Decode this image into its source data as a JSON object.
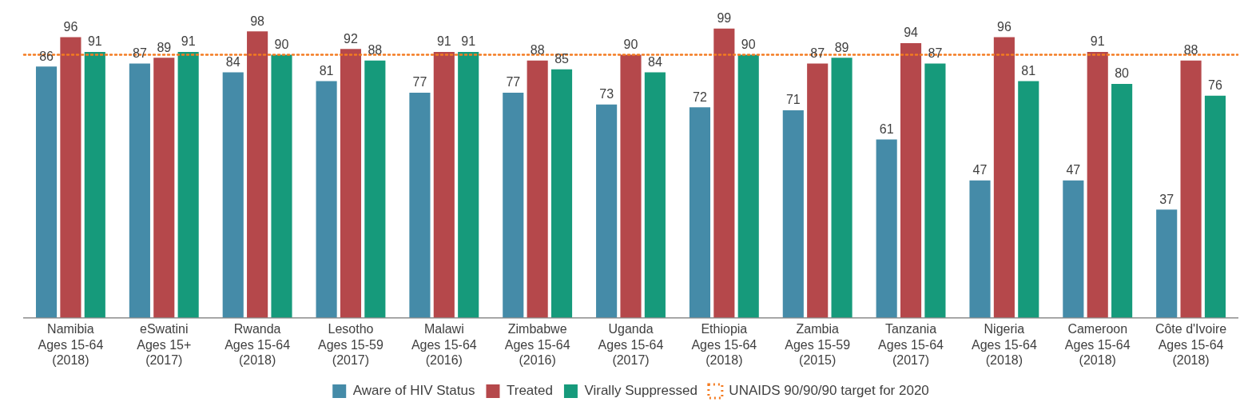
{
  "chart_data": {
    "type": "bar",
    "categories": [
      "Namibia\nAges 15-64\n(2018)",
      "eSwatini\nAges 15+\n(2017)",
      "Rwanda\nAges 15-64\n(2018)",
      "Lesotho\nAges 15-59\n(2017)",
      "Malawi\nAges 15-64\n(2016)",
      "Zimbabwe\nAges 15-64\n(2016)",
      "Uganda\nAges 15-64\n(2017)",
      "Ethiopia\nAges 15-64\n(2018)",
      "Zambia\nAges 15-59\n(2015)",
      "Tanzania\nAges 15-64\n(2017)",
      "Nigeria\nAges 15-64\n(2018)",
      "Cameroon\nAges 15-64\n(2018)",
      "Côte d'Ivoire\nAges 15-64\n(2018)"
    ],
    "series": [
      {
        "name": "Aware of HIV Status",
        "color": "#458ba8",
        "values": [
          86,
          87,
          84,
          81,
          77,
          77,
          73,
          72,
          71,
          61,
          47,
          47,
          37
        ]
      },
      {
        "name": "Treated",
        "color": "#b5484b",
        "values": [
          96,
          89,
          98,
          92,
          91,
          88,
          90,
          99,
          87,
          94,
          96,
          91,
          88
        ]
      },
      {
        "name": "Virally Suppressed",
        "color": "#169a7b",
        "values": [
          91,
          91,
          90,
          88,
          91,
          85,
          84,
          90,
          89,
          87,
          81,
          80,
          76
        ]
      }
    ],
    "ylim": [
      0,
      100
    ],
    "ref_lines": [
      {
        "axis": "y",
        "value": 90,
        "label": "UNAIDS 90/90/90 target for 2020",
        "color": "#f47b20",
        "line_style": "dotted"
      }
    ],
    "data_labels": true,
    "legend": "bottom",
    "tick_labels": "x",
    "grid": false
  }
}
